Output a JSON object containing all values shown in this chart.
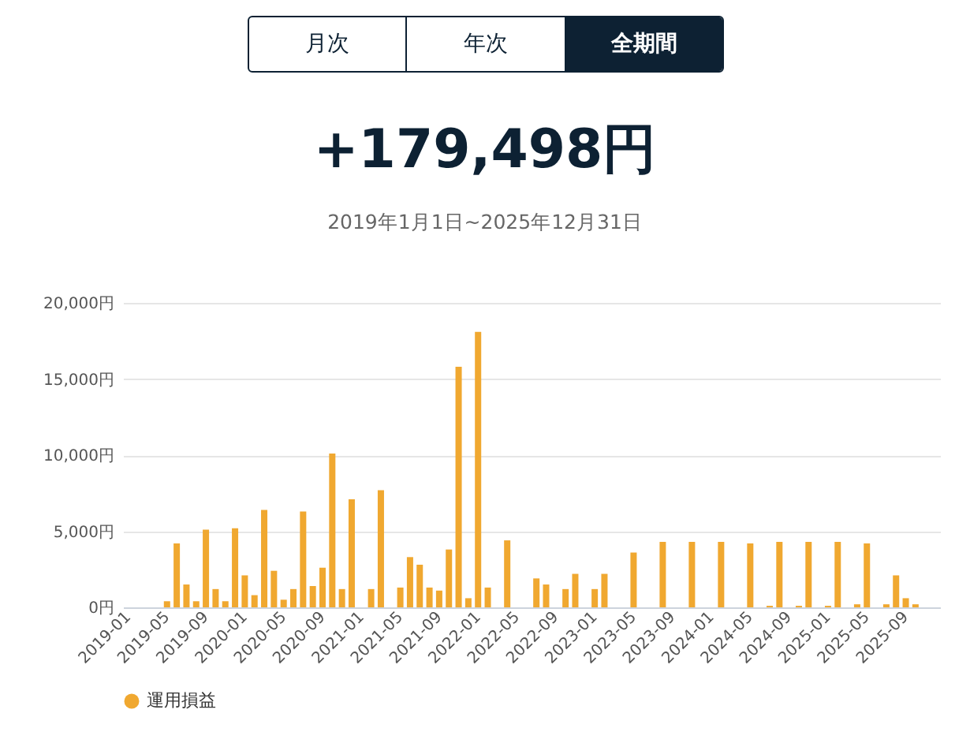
{
  "chart_data": {
    "type": "bar",
    "title": "+179,498円",
    "subtitle": "2019年1月1日~2025年12月31日",
    "annotations": [
      "月次",
      "年次",
      "全期間"
    ],
    "categories": [
      "2019-01",
      null,
      null,
      null,
      "2019-05",
      null,
      null,
      null,
      "2019-09",
      null,
      null,
      null,
      "2020-01",
      null,
      null,
      null,
      "2020-05",
      null,
      null,
      null,
      "2020-09",
      null,
      null,
      null,
      "2021-01",
      null,
      null,
      null,
      "2021-05",
      null,
      null,
      null,
      "2021-09",
      null,
      null,
      null,
      "2022-01",
      null,
      null,
      null,
      "2022-05",
      null,
      null,
      null,
      "2022-09",
      null,
      null,
      null,
      "2023-01",
      null,
      null,
      null,
      "2023-05",
      null,
      null,
      null,
      "2023-09",
      null,
      null,
      null,
      "2024-01",
      null,
      null,
      null,
      "2024-05",
      null,
      null,
      null,
      "2024-09",
      null,
      null,
      null,
      "2025-01",
      null,
      null,
      null,
      "2025-05",
      null,
      null,
      null,
      "2025-09",
      null,
      null,
      null
    ],
    "series": [
      {
        "name": "運用損益",
        "color": "#f0a830",
        "values": [
          null,
          null,
          null,
          null,
          400,
          4200,
          1500,
          400,
          5100,
          1200,
          400,
          5200,
          2100,
          800,
          6400,
          2400,
          500,
          1200,
          6300,
          1400,
          2600,
          10100,
          1200,
          7100,
          null,
          1200,
          7700,
          null,
          1300,
          3300,
          2800,
          1300,
          1100,
          3800,
          15800,
          600,
          18100,
          1300,
          null,
          4400,
          null,
          null,
          1900,
          1500,
          null,
          1200,
          2200,
          null,
          1200,
          2200,
          null,
          null,
          3600,
          null,
          null,
          4300,
          null,
          null,
          4300,
          null,
          null,
          4300,
          null,
          null,
          4200,
          null,
          100,
          4300,
          null,
          100,
          4300,
          null,
          100,
          4300,
          null,
          200,
          4200,
          null,
          200,
          2100,
          600,
          200,
          null,
          null
        ]
      }
    ],
    "ylim": [
      0,
      20000
    ],
    "yticks": [
      {
        "value": 0,
        "label": "0円"
      },
      {
        "value": 5000,
        "label": "5,000円"
      },
      {
        "value": 10000,
        "label": "10,000円"
      },
      {
        "value": 15000,
        "label": "15,000円"
      },
      {
        "value": 20000,
        "label": "20,000円"
      }
    ],
    "grid": "y",
    "legend": "bottom"
  }
}
